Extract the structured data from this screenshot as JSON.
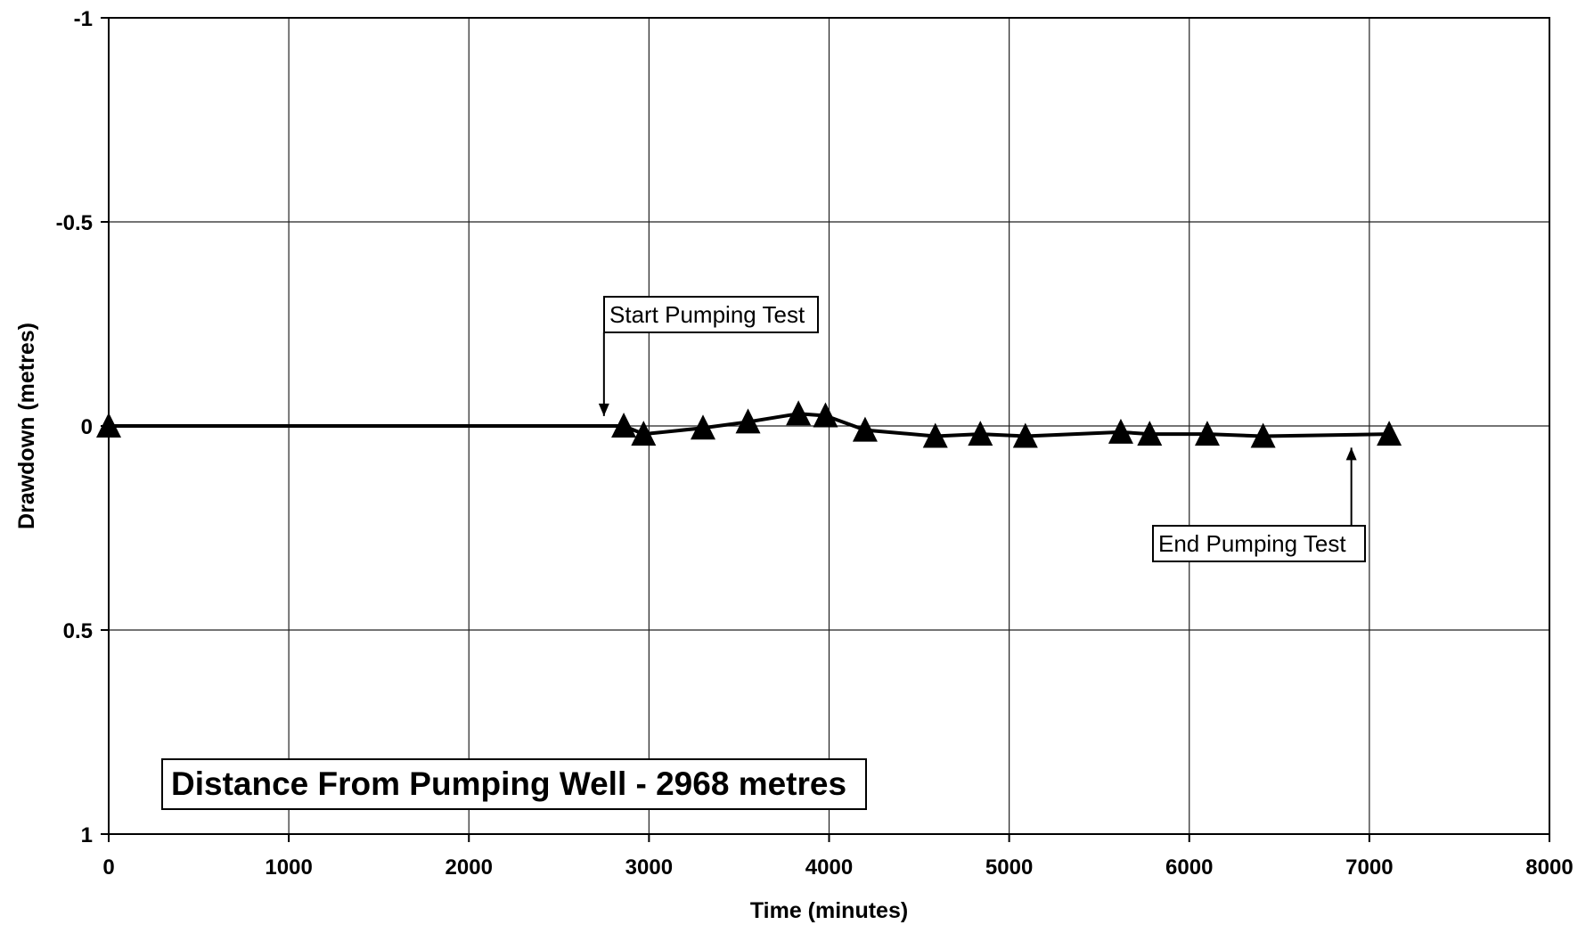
{
  "chart_data": {
    "type": "line",
    "xlabel": "Time (minutes)",
    "ylabel": "Drawdown (metres)",
    "xlim": [
      0,
      8000
    ],
    "ylim": [
      -1,
      1
    ],
    "y_inverted": true,
    "grid": true,
    "x_ticks": [
      0,
      1000,
      2000,
      3000,
      4000,
      5000,
      6000,
      7000,
      8000
    ],
    "x_tick_labels": [
      "0",
      "1000",
      "2000",
      "3000",
      "4000",
      "5000",
      "6000",
      "7000",
      "8000"
    ],
    "y_ticks": [
      -1,
      -0.5,
      0,
      0.5,
      1
    ],
    "y_tick_labels": [
      "-1",
      "-0.5",
      "0",
      "0.5",
      "1"
    ],
    "marker": "triangle",
    "series": [
      {
        "x": [
          0,
          2860,
          2970,
          3300,
          3550,
          3830,
          3980,
          4200,
          4590,
          4840,
          5090,
          5620,
          5780,
          6100,
          6410,
          7110
        ],
        "y": [
          0,
          0,
          0.02,
          0.005,
          -0.01,
          -0.03,
          -0.025,
          0.01,
          0.025,
          0.02,
          0.025,
          0.015,
          0.02,
          0.02,
          0.025,
          0.02
        ]
      }
    ],
    "annotations": [
      {
        "text": "Start Pumping Test",
        "x": 2750,
        "y": -0.02
      },
      {
        "text": "End Pumping Test",
        "x": 6900,
        "y": 0.04
      }
    ],
    "info_box": "Distance From Pumping Well - 2968 metres"
  }
}
